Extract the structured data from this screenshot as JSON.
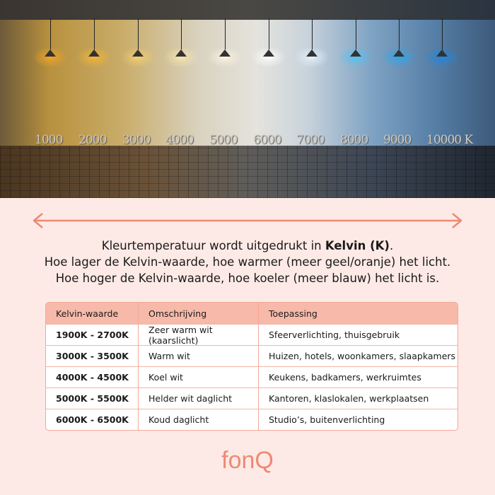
{
  "hero": {
    "kelvin_labels": [
      "1000",
      "2000",
      "3000",
      "4000",
      "5000",
      "6000",
      "7000",
      "8000",
      "9000",
      "10000 K"
    ],
    "lamp_colors": [
      "#f5a623",
      "#f7b733",
      "#f8cf6a",
      "#fbe6b0",
      "#fff4e0",
      "#ffffff",
      "#e6f4ff",
      "#4fc3f7",
      "#29a7f0",
      "#1e88e5"
    ]
  },
  "intro": {
    "line1_pre": "Kleurtemperatuur wordt uitgedrukt in ",
    "line1_bold": "Kelvin (K)",
    "line1_post": ".",
    "line2": "Hoe lager de Kelvin-waarde, hoe warmer (meer geel/oranje) het licht.",
    "line3": "Hoe hoger de Kelvin-waarde, hoe koeler (meer blauw) het licht is."
  },
  "table": {
    "headers": [
      "Kelvin-waarde",
      "Omschrijving",
      "Toepassing"
    ],
    "rows": [
      [
        "1900K - 2700K",
        "Zeer warm wit (kaarslicht)",
        "Sfeerverlichting, thuisgebruik"
      ],
      [
        "3000K - 3500K",
        "Warm wit",
        "Huizen, hotels, woonkamers, slaapkamers"
      ],
      [
        "4000K - 4500K",
        "Koel wit",
        "Keukens, badkamers, werkruimtes"
      ],
      [
        "5000K - 5500K",
        "Helder wit daglicht",
        "Kantoren, klaslokalen, werkplaatsen"
      ],
      [
        "6000K - 6500K",
        "Koud daglicht",
        "Studio’s, buitenverlichting"
      ]
    ]
  },
  "logo": "fonQ",
  "colors": {
    "accent": "#ee8a73",
    "background": "#fdeae6",
    "table_header": "#f7b9a9"
  }
}
